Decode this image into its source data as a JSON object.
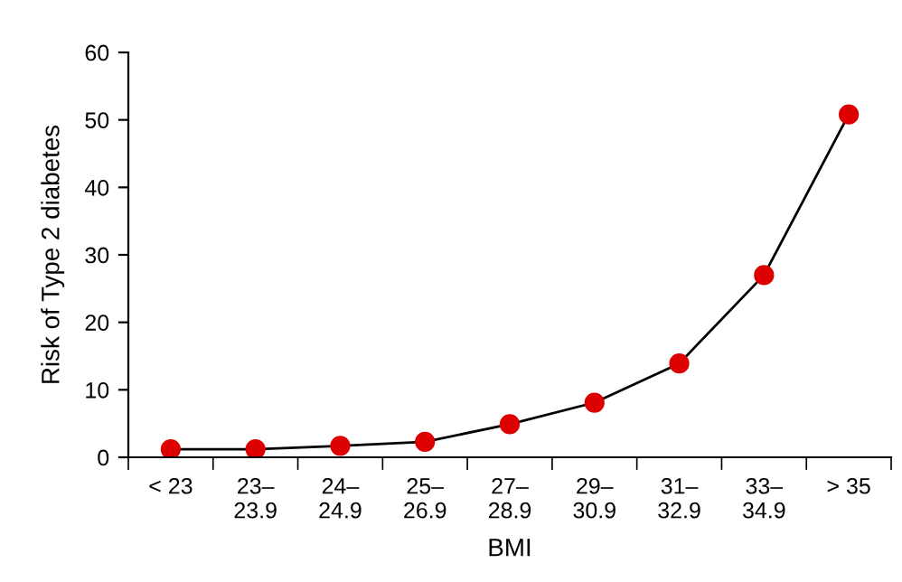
{
  "chart_data": {
    "type": "line",
    "xlabel": "BMI",
    "ylabel": "Risk of Type 2 diabetes",
    "categories": [
      "< 23",
      "23–\n23.9",
      "24–\n24.9",
      "25–\n26.9",
      "27–\n28.9",
      "29–\n30.9",
      "31–\n32.9",
      "33–\n34.9",
      "> 35"
    ],
    "series": [
      {
        "color": "#dd0000",
        "values": [
          1.2,
          1.2,
          1.7,
          2.3,
          4.9,
          8.1,
          13.9,
          27.0,
          50.8
        ]
      }
    ],
    "ylim": [
      0,
      60
    ],
    "yticks": [
      0,
      10,
      20,
      30,
      40,
      50,
      60
    ],
    "grid": false,
    "legend": false,
    "marker": "circle",
    "line_style": "solid"
  }
}
